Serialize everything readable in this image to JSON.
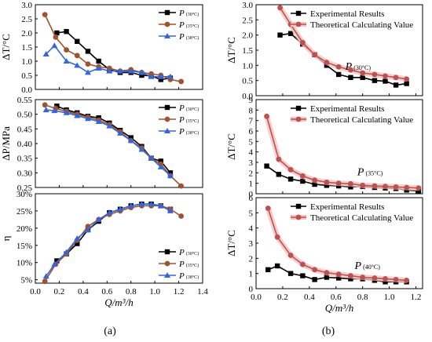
{
  "chart_data": [
    {
      "id": "a1",
      "type": "line",
      "ylabel": "ΔT/°C",
      "xlim": [
        0.0,
        1.4
      ],
      "ylim": [
        0.0,
        3.0
      ],
      "yticks": [
        "0.0",
        "0.5",
        "1.0",
        "1.5",
        "2.0",
        "2.5",
        "3.0"
      ],
      "legend_position": "top-right",
      "series": [
        {
          "name": "P",
          "sub": "(30°C)",
          "color": "#000000",
          "marker": "square",
          "x": [
            0.18,
            0.26,
            0.35,
            0.44,
            0.53,
            0.62,
            0.71,
            0.8,
            0.89,
            0.97,
            1.05,
            1.13
          ],
          "y": [
            2.0,
            2.05,
            1.7,
            1.35,
            1.0,
            0.7,
            0.6,
            0.6,
            0.5,
            0.48,
            0.35,
            0.4
          ]
        },
        {
          "name": "P",
          "sub": "(35°C)",
          "color": "#a0522d",
          "marker": "circle",
          "x": [
            0.08,
            0.17,
            0.26,
            0.35,
            0.44,
            0.53,
            0.62,
            0.71,
            0.8,
            0.89,
            0.97,
            1.05,
            1.13,
            1.22
          ],
          "y": [
            2.65,
            1.85,
            1.4,
            1.2,
            0.9,
            0.8,
            0.75,
            0.65,
            0.7,
            0.6,
            0.55,
            0.5,
            0.35,
            0.28
          ]
        },
        {
          "name": "P",
          "sub": "(38°C)",
          "color": "#3366dd",
          "marker": "triangle",
          "x": [
            0.09,
            0.16,
            0.26,
            0.35,
            0.44,
            0.53,
            0.62,
            0.71,
            0.8,
            0.89,
            0.97,
            1.05,
            1.13
          ],
          "y": [
            1.25,
            1.55,
            1.0,
            0.85,
            0.6,
            0.75,
            0.65,
            0.65,
            0.65,
            0.6,
            0.45,
            0.45,
            0.45
          ]
        }
      ]
    },
    {
      "id": "a2",
      "type": "line",
      "ylabel": "ΔP/MPa",
      "xlim": [
        0.0,
        1.4
      ],
      "ylim": [
        0.25,
        0.55
      ],
      "yticks": [
        "0.25",
        "0.30",
        "0.35",
        "0.40",
        "0.45",
        "0.50",
        "0.55"
      ],
      "legend_position": "top-right",
      "series": [
        {
          "name": "P",
          "sub": "(30°C)",
          "color": "#000000",
          "marker": "square",
          "x": [
            0.18,
            0.26,
            0.35,
            0.44,
            0.53,
            0.62,
            0.71,
            0.8,
            0.89,
            0.97,
            1.05,
            1.13
          ],
          "y": [
            0.528,
            0.515,
            0.505,
            0.493,
            0.488,
            0.47,
            0.445,
            0.42,
            0.39,
            0.35,
            0.34,
            0.3
          ]
        },
        {
          "name": "P",
          "sub": "(35°C)",
          "color": "#a0522d",
          "marker": "circle",
          "x": [
            0.08,
            0.17,
            0.26,
            0.35,
            0.44,
            0.53,
            0.62,
            0.71,
            0.8,
            0.89,
            0.97,
            1.05,
            1.13,
            1.22
          ],
          "y": [
            0.532,
            0.52,
            0.51,
            0.5,
            0.49,
            0.48,
            0.465,
            0.44,
            0.41,
            0.385,
            0.35,
            0.33,
            0.29,
            0.255
          ]
        },
        {
          "name": "P",
          "sub": "(38°C)",
          "color": "#3366dd",
          "marker": "triangle",
          "x": [
            0.09,
            0.16,
            0.26,
            0.35,
            0.44,
            0.53,
            0.62,
            0.71,
            0.8,
            0.89,
            0.97,
            1.05,
            1.13
          ],
          "y": [
            0.515,
            0.512,
            0.505,
            0.495,
            0.485,
            0.475,
            0.46,
            0.435,
            0.41,
            0.38,
            0.35,
            0.32,
            0.29
          ]
        }
      ]
    },
    {
      "id": "a3",
      "type": "line",
      "ylabel": "η",
      "xlabel": "Q/m³/h",
      "xlim": [
        0.0,
        1.4
      ],
      "ylim": [
        4,
        30
      ],
      "yticks": [
        "5%",
        "10%",
        "15%",
        "20%",
        "25%",
        "30%"
      ],
      "ytick_values": [
        5,
        10,
        15,
        20,
        25,
        30
      ],
      "xticks": [
        "0.0",
        "0.2",
        "0.4",
        "0.6",
        "0.8",
        "1.0",
        "1.2",
        "1.4"
      ],
      "legend_position": "bottom-right",
      "series": [
        {
          "name": "P",
          "sub": "(30°C)",
          "color": "#000000",
          "marker": "square",
          "x": [
            0.18,
            0.26,
            0.35,
            0.44,
            0.53,
            0.62,
            0.71,
            0.8,
            0.89,
            0.97,
            1.05,
            1.13
          ],
          "y": [
            10.5,
            12.5,
            15.5,
            19.5,
            22,
            24.5,
            25.5,
            26.5,
            27,
            27,
            26.5,
            25.5
          ]
        },
        {
          "name": "P",
          "sub": "(35°C)",
          "color": "#a0522d",
          "marker": "circle",
          "x": [
            0.08,
            0.17,
            0.26,
            0.35,
            0.44,
            0.53,
            0.62,
            0.71,
            0.8,
            0.89,
            0.97,
            1.05,
            1.13,
            1.22
          ],
          "y": [
            4.5,
            9.5,
            12.5,
            16.5,
            20.5,
            22.5,
            24,
            25,
            26,
            26.5,
            26.5,
            26.5,
            25.5,
            23.5
          ]
        },
        {
          "name": "P",
          "sub": "(38°C)",
          "color": "#3366dd",
          "marker": "triangle",
          "x": [
            0.09,
            0.16,
            0.26,
            0.35,
            0.44,
            0.53,
            0.62,
            0.71,
            0.8,
            0.89,
            0.97,
            1.05,
            1.13
          ],
          "y": [
            6,
            9.5,
            13,
            17,
            19.5,
            22.5,
            24.5,
            25.5,
            26.5,
            27,
            27,
            26.5,
            25
          ]
        }
      ]
    },
    {
      "id": "b1",
      "type": "line",
      "ylabel": "ΔT/°C",
      "xlim": [
        0.0,
        1.25
      ],
      "ylim": [
        0.0,
        3.0
      ],
      "yticks": [
        "0.0",
        "0.5",
        "1.0",
        "1.5",
        "2.0",
        "2.5",
        "3.0"
      ],
      "annotation": {
        "text": "P",
        "sub": "(30°C)",
        "x": 0.67,
        "y": 0.85
      },
      "legend_position": "top",
      "series": [
        {
          "name": "Experimental Results",
          "color": "#000000",
          "marker": "square",
          "x": [
            0.18,
            0.26,
            0.35,
            0.44,
            0.53,
            0.62,
            0.71,
            0.8,
            0.89,
            0.97,
            1.05,
            1.13
          ],
          "y": [
            2.0,
            2.05,
            1.7,
            1.35,
            1.0,
            0.7,
            0.6,
            0.6,
            0.5,
            0.48,
            0.35,
            0.4
          ]
        },
        {
          "name": "Theoretical Calculating Value",
          "color": "#c0504d",
          "marker": "circle",
          "x": [
            0.18,
            0.26,
            0.35,
            0.44,
            0.53,
            0.62,
            0.71,
            0.8,
            0.89,
            0.97,
            1.05,
            1.13
          ],
          "y": [
            2.9,
            2.35,
            1.75,
            1.35,
            1.1,
            0.95,
            0.85,
            0.75,
            0.7,
            0.65,
            0.6,
            0.55
          ]
        }
      ]
    },
    {
      "id": "b2",
      "type": "line",
      "ylabel": "ΔT/°C",
      "xlim": [
        0.0,
        1.25
      ],
      "ylim": [
        0,
        9
      ],
      "yticks": [
        "0",
        "1",
        "2",
        "3",
        "4",
        "5",
        "6",
        "7",
        "8",
        "9"
      ],
      "annotation": {
        "text": "P",
        "sub": "(35°C)",
        "x": 0.76,
        "y": 1.75
      },
      "legend_position": "top",
      "series": [
        {
          "name": "Experimental Results",
          "color": "#000000",
          "marker": "square",
          "x": [
            0.08,
            0.17,
            0.26,
            0.35,
            0.44,
            0.53,
            0.62,
            0.71,
            0.8,
            0.89,
            0.97,
            1.05,
            1.13,
            1.22
          ],
          "y": [
            2.65,
            1.85,
            1.4,
            1.2,
            0.9,
            0.8,
            0.75,
            0.65,
            0.7,
            0.6,
            0.55,
            0.5,
            0.35,
            0.28
          ]
        },
        {
          "name": "Theoretical Calculating Value",
          "color": "#c0504d",
          "marker": "circle",
          "x": [
            0.08,
            0.17,
            0.26,
            0.35,
            0.44,
            0.53,
            0.62,
            0.71,
            0.8,
            0.89,
            0.97,
            1.05,
            1.13,
            1.22
          ],
          "y": [
            7.4,
            3.3,
            2.3,
            1.7,
            1.3,
            1.1,
            1.0,
            0.95,
            0.8,
            0.75,
            0.7,
            0.65,
            0.6,
            0.55
          ]
        }
      ]
    },
    {
      "id": "b3",
      "type": "line",
      "ylabel": "ΔT/°C",
      "xlabel": "Q/m³/h",
      "xlim": [
        0.0,
        1.25
      ],
      "ylim": [
        0,
        6
      ],
      "yticks": [
        "0",
        "1",
        "2",
        "3",
        "4",
        "5",
        "6"
      ],
      "xticks": [
        "0.0",
        "0.2",
        "0.4",
        "0.6",
        "0.8",
        "1.0",
        "1.2"
      ],
      "annotation": {
        "text": "P",
        "sub": "(40°C)",
        "x": 0.74,
        "y": 1.3
      },
      "legend_position": "top",
      "series": [
        {
          "name": "Experimental Results",
          "color": "#000000",
          "marker": "square",
          "x": [
            0.09,
            0.16,
            0.26,
            0.35,
            0.44,
            0.53,
            0.62,
            0.71,
            0.8,
            0.89,
            0.97,
            1.05,
            1.13
          ],
          "y": [
            1.25,
            1.5,
            1.0,
            0.85,
            0.6,
            0.75,
            0.7,
            0.65,
            0.65,
            0.55,
            0.45,
            0.45,
            0.45
          ]
        },
        {
          "name": "Theoretical Calculating Value",
          "color": "#c0504d",
          "marker": "circle",
          "x": [
            0.09,
            0.16,
            0.26,
            0.35,
            0.44,
            0.53,
            0.62,
            0.71,
            0.8,
            0.89,
            0.97,
            1.05,
            1.13
          ],
          "y": [
            5.3,
            3.4,
            2.2,
            1.6,
            1.25,
            1.05,
            0.95,
            0.85,
            0.75,
            0.7,
            0.65,
            0.6,
            0.55
          ]
        }
      ]
    }
  ],
  "captions": {
    "left": "(a)",
    "right": "(b)"
  }
}
